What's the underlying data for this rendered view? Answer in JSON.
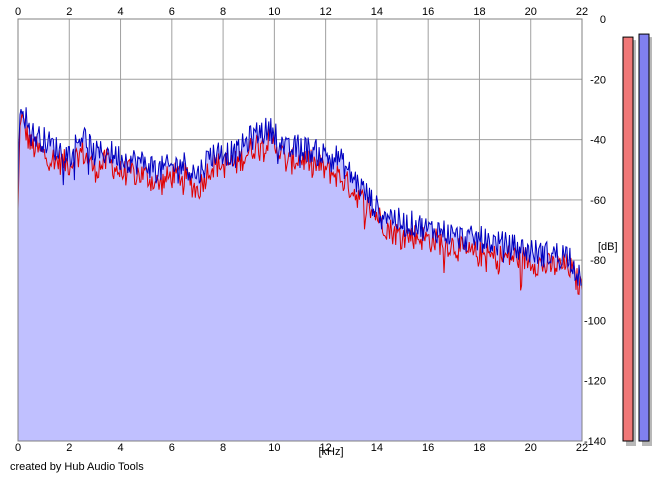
{
  "footer": {
    "credit": "created by Hub Audio Tools"
  },
  "colors": {
    "fill": "#c0c0ff",
    "left_channel": "#e00000",
    "right_channel": "#0000c0",
    "grid": "#a0a0a0",
    "level_left": "#f07878",
    "level_right": "#8080f0"
  },
  "chart_data": {
    "type": "line",
    "title": "",
    "xlabel": "[kHz]",
    "ylabel": "[dB]",
    "xlim": [
      0,
      22
    ],
    "ylim": [
      -140,
      0
    ],
    "x_ticks": [
      "0",
      "2",
      "4",
      "6",
      "8",
      "10",
      "12",
      "14",
      "16",
      "18",
      "20",
      "22"
    ],
    "y_ticks": [
      "0",
      "-20",
      "-40",
      "-60",
      "-80",
      "-100",
      "-120",
      "-140"
    ],
    "grid": true,
    "legend": "none",
    "x": [
      0,
      0.1,
      0.2,
      0.5,
      1,
      1.5,
      2,
      2.5,
      3,
      3.5,
      4,
      4.5,
      5,
      5.5,
      6,
      6.5,
      7,
      7.5,
      8,
      8.5,
      9,
      9.5,
      10,
      10.5,
      11,
      11.5,
      12,
      12.5,
      13,
      13.5,
      14,
      14.5,
      15,
      15.5,
      16,
      16.5,
      17,
      17.5,
      18,
      18.5,
      19,
      19.5,
      20,
      20.5,
      21,
      21.5,
      22
    ],
    "series": [
      {
        "values": [
          -63,
          -30,
          -35,
          -42,
          -45,
          -47,
          -48,
          -44,
          -50,
          -47,
          -51,
          -51,
          -52,
          -55,
          -52,
          -52,
          -57,
          -49,
          -48,
          -48,
          -44,
          -40,
          -41,
          -48,
          -46,
          -48,
          -50,
          -52,
          -56,
          -61,
          -65,
          -70,
          -72,
          -72,
          -73,
          -74,
          -75,
          -78,
          -78,
          -79,
          -79,
          -79,
          -80,
          -82,
          -82,
          -82,
          -90
        ]
      },
      {
        "values": [
          -58,
          -25,
          -30,
          -38,
          -40,
          -43,
          -45,
          -38,
          -45,
          -44,
          -46,
          -47,
          -48,
          -50,
          -49,
          -48,
          -52,
          -45,
          -44,
          -45,
          -40,
          -37,
          -37,
          -44,
          -42,
          -44,
          -45,
          -46,
          -52,
          -57,
          -63,
          -65,
          -68,
          -68,
          -70,
          -70,
          -72,
          -73,
          -73,
          -74,
          -75,
          -76,
          -77,
          -78,
          -78,
          -78,
          -88
        ]
      }
    ],
    "levels": [
      -6,
      -5
    ]
  }
}
